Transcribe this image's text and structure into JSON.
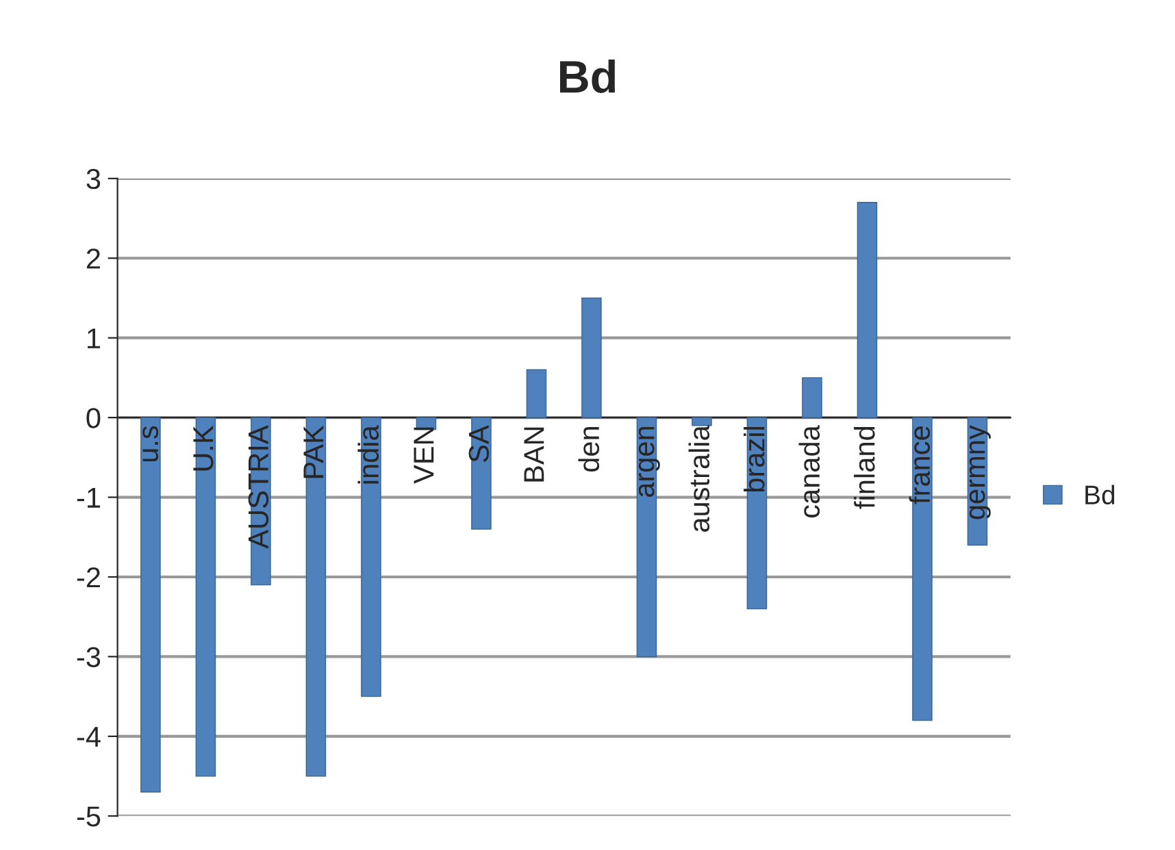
{
  "chart_data": {
    "type": "bar",
    "title": "Bd",
    "categories": [
      "u.s",
      "U.K",
      "AUSTRIA",
      "PAK",
      "india",
      "VEN",
      "SA",
      "BAN",
      "den",
      "argen",
      "australia",
      "brazil",
      "canada",
      "finland",
      "france",
      "germny"
    ],
    "series": [
      {
        "name": "Bd",
        "color": "#4f81bd",
        "values": [
          -4.7,
          -4.5,
          -2.1,
          -4.5,
          -3.5,
          -0.15,
          -1.4,
          0.6,
          1.5,
          -3.0,
          -0.1,
          -2.4,
          0.5,
          2.7,
          -3.8,
          -1.6
        ]
      }
    ],
    "ylim": [
      -5,
      3
    ],
    "yticks": [
      -5,
      -4,
      -3,
      -2,
      -1,
      0,
      1,
      2,
      3
    ],
    "grid": "y",
    "legend": "right"
  }
}
